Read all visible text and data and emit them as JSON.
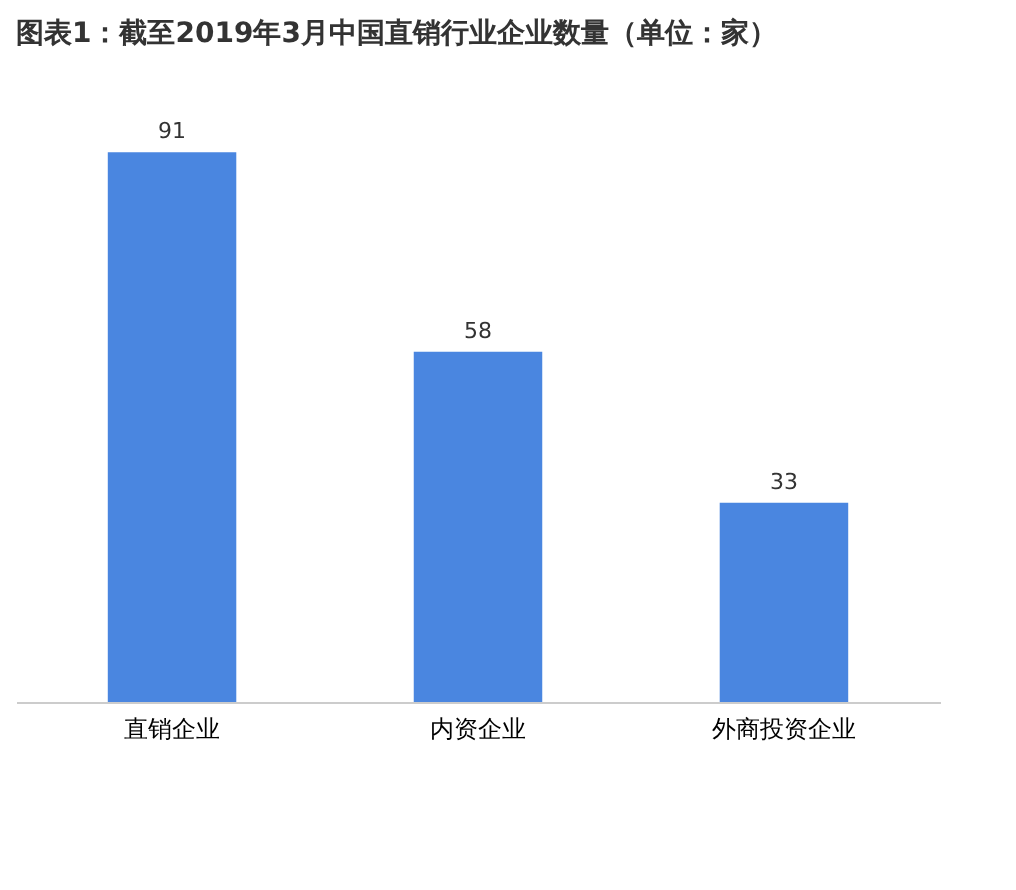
{
  "chart_data": {
    "type": "bar",
    "title": "图表1：截至2019年3月中国直销行业企业数量（单位：家）",
    "categories": [
      "直销企业",
      "内资企业",
      "外商投资企业"
    ],
    "values": [
      91,
      58,
      33
    ],
    "color": "#4a86e0",
    "data_labels": true
  }
}
